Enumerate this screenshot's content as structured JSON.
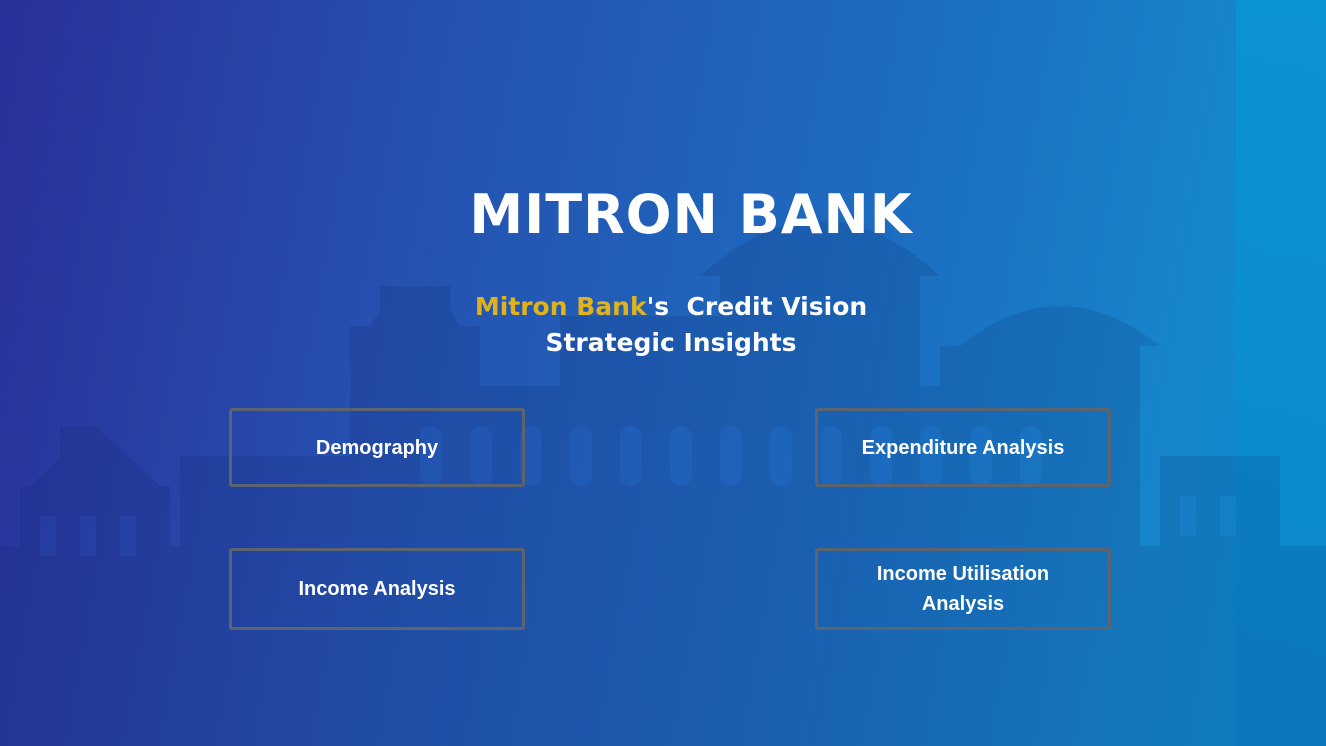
{
  "header": {
    "title": "MITRON BANK",
    "subtitle_brand": "Mitron Bank",
    "subtitle_suffix": "'s  Credit Vision",
    "subtitle_line2": "Strategic Insights"
  },
  "navigation": {
    "demography": "Demography",
    "expenditure": "Expenditure Analysis",
    "income": "Income Analysis",
    "utilisation_line1": "Income Utilisation",
    "utilisation_line2": "Analysis"
  },
  "colors": {
    "accent": "#e0b21c",
    "text": "#ffffff",
    "button_border": "#5c6470",
    "background_left": "#2a2f9a",
    "background_right": "#0a90d2"
  }
}
